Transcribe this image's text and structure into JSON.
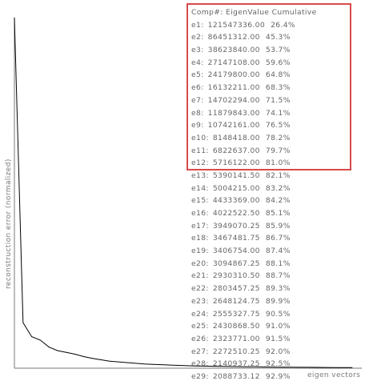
{
  "chart_data": {
    "type": "line",
    "xlabel": "eigen vectors",
    "ylabel": "reconstruction error (normalized)",
    "grid": false,
    "legend": "none",
    "ylim": [
      0,
      1
    ],
    "x": [
      1,
      2,
      3,
      4,
      5,
      6,
      7,
      8,
      9,
      10,
      11,
      12,
      13,
      14,
      15,
      16,
      17,
      18,
      19,
      20,
      21,
      22,
      23,
      24,
      25,
      26,
      27,
      28,
      29,
      30,
      31,
      32,
      33,
      34,
      35,
      36,
      37,
      38,
      39,
      40
    ],
    "series": [
      {
        "values": [
          1.0,
          0.13,
          0.09,
          0.08,
          0.06,
          0.05,
          0.045,
          0.04,
          0.033,
          0.028,
          0.024,
          0.02,
          0.018,
          0.016,
          0.014,
          0.012,
          0.011,
          0.01,
          0.009,
          0.008,
          0.007,
          0.0065,
          0.006,
          0.0055,
          0.005,
          0.0047,
          0.0044,
          0.0041,
          0.0038,
          0.0035,
          0.0032,
          0.003,
          0.0028,
          0.0026,
          0.0024,
          0.0022,
          0.002,
          0.0018,
          0.0016,
          0.0015
        ]
      }
    ]
  },
  "table": {
    "header": "Comp#: EigenValue Cumulative",
    "rows": [
      {
        "id": "e1:",
        "value": "121547336.00",
        "cumulative": "26.4%"
      },
      {
        "id": "e2:",
        "value": "86451312.00",
        "cumulative": "45.3%"
      },
      {
        "id": "e3:",
        "value": "38623840.00",
        "cumulative": "53.7%"
      },
      {
        "id": "e4:",
        "value": "27147108.00",
        "cumulative": "59.6%"
      },
      {
        "id": "e5:",
        "value": "24179800.00",
        "cumulative": "64.8%"
      },
      {
        "id": "e6:",
        "value": "16132211.00",
        "cumulative": "68.3%"
      },
      {
        "id": "e7:",
        "value": "14702294.00",
        "cumulative": "71.5%"
      },
      {
        "id": "e8:",
        "value": "11879843.00",
        "cumulative": "74.1%"
      },
      {
        "id": "e9:",
        "value": "10742161.00",
        "cumulative": "76.5%"
      },
      {
        "id": "e10:",
        "value": "8148418.00",
        "cumulative": "78.2%"
      },
      {
        "id": "e11:",
        "value": "6822637.00",
        "cumulative": "79.7%"
      },
      {
        "id": "e12:",
        "value": "5716122.00",
        "cumulative": "81.0%"
      },
      {
        "id": "e13:",
        "value": "5390141.50",
        "cumulative": "82.1%"
      },
      {
        "id": "e14:",
        "value": "5004215.00",
        "cumulative": "83.2%"
      },
      {
        "id": "e15:",
        "value": "4433369.00",
        "cumulative": "84.2%"
      },
      {
        "id": "e16:",
        "value": "4022522.50",
        "cumulative": "85.1%"
      },
      {
        "id": "e17:",
        "value": "3949070.25",
        "cumulative": "85.9%"
      },
      {
        "id": "e18:",
        "value": "3467481.75",
        "cumulative": "86.7%"
      },
      {
        "id": "e19:",
        "value": "3406754.00",
        "cumulative": "87.4%"
      },
      {
        "id": "e20:",
        "value": "3094867.25",
        "cumulative": "88.1%"
      },
      {
        "id": "e21:",
        "value": "2930310.50",
        "cumulative": "88.7%"
      },
      {
        "id": "e22:",
        "value": "2803457.25",
        "cumulative": "89.3%"
      },
      {
        "id": "e23:",
        "value": "2648124.75",
        "cumulative": "89.9%"
      },
      {
        "id": "e24:",
        "value": "2555327.75",
        "cumulative": "90.5%"
      },
      {
        "id": "e25:",
        "value": "2430868.50",
        "cumulative": "91.0%"
      },
      {
        "id": "e26:",
        "value": "2323771.00",
        "cumulative": "91.5%"
      },
      {
        "id": "e27:",
        "value": "2272510.25",
        "cumulative": "92.0%"
      },
      {
        "id": "e28:",
        "value": "2140937.25",
        "cumulative": "92.5%"
      },
      {
        "id": "e29:",
        "value": "2088733.12",
        "cumulative": "92.9%"
      }
    ]
  },
  "colors": {
    "highlight": "#d84b4b",
    "curve": "#000000",
    "text": "#666666",
    "axis": "#777777"
  }
}
